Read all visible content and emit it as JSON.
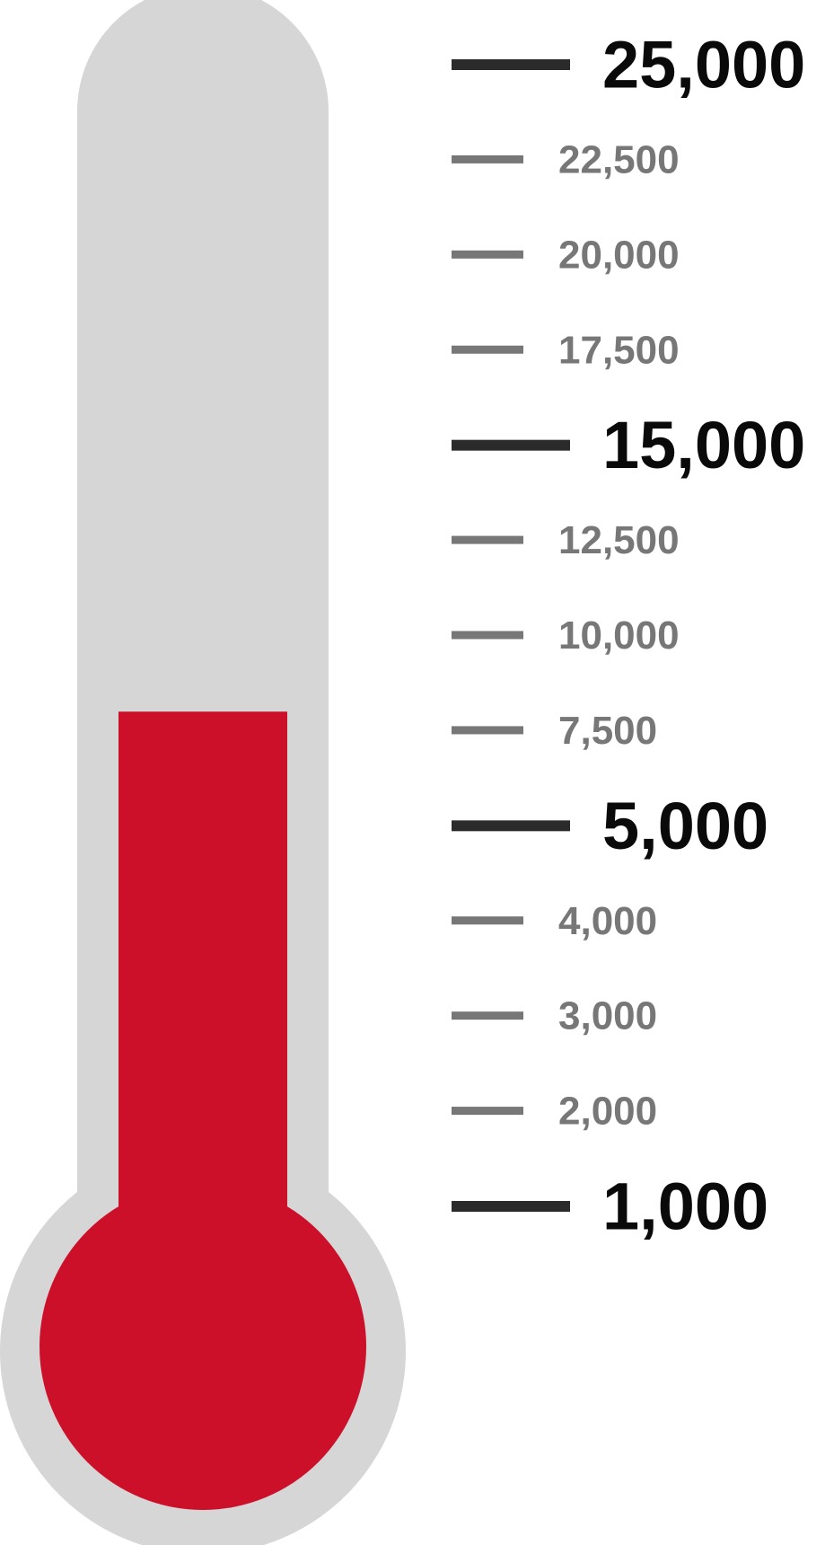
{
  "colors": {
    "tube": "#d6d6d6",
    "fill": "#cc102a",
    "major_tick": "#2b2b2b",
    "minor_tick": "#777777",
    "background": "#ffffff"
  },
  "chart_data": {
    "type": "thermometer",
    "title": "",
    "scale": "non-uniform",
    "current_value": 8000,
    "ticks": [
      {
        "value": 25000,
        "label": "25,000",
        "major": true
      },
      {
        "value": 22500,
        "label": "22,500",
        "major": false
      },
      {
        "value": 20000,
        "label": "20,000",
        "major": false
      },
      {
        "value": 17500,
        "label": "17,500",
        "major": false
      },
      {
        "value": 15000,
        "label": "15,000",
        "major": true
      },
      {
        "value": 12500,
        "label": "12,500",
        "major": false
      },
      {
        "value": 10000,
        "label": "10,000",
        "major": false
      },
      {
        "value": 7500,
        "label": "7,500",
        "major": false
      },
      {
        "value": 5000,
        "label": "5,000",
        "major": true
      },
      {
        "value": 4000,
        "label": "4,000",
        "major": false
      },
      {
        "value": 3000,
        "label": "3,000",
        "major": false
      },
      {
        "value": 2000,
        "label": "2,000",
        "major": false
      },
      {
        "value": 1000,
        "label": "1,000",
        "major": true
      }
    ]
  }
}
